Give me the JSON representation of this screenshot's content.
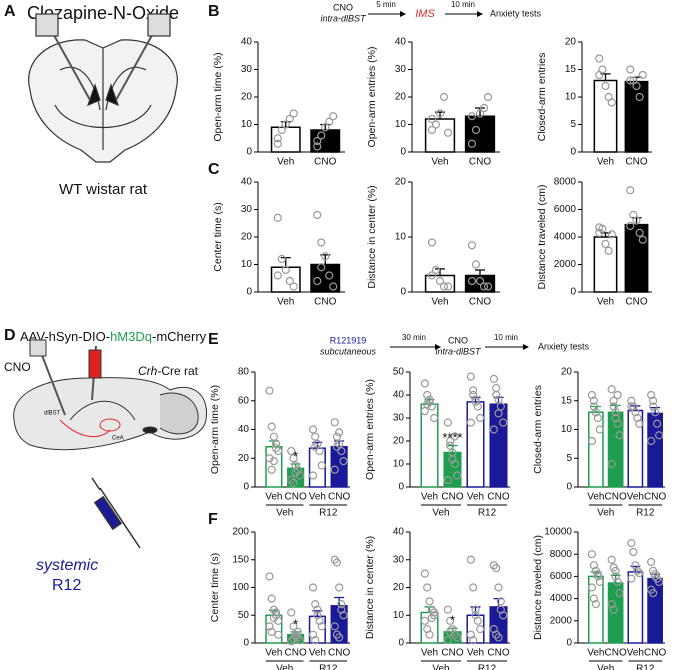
{
  "panels": [
    "A",
    "B",
    "C",
    "D",
    "E",
    "F"
  ],
  "diagram_a": {
    "title": "Clozapine-N-Oxide",
    "caption": "WT wistar rat"
  },
  "timeline_b": {
    "drug": "CNO",
    "site": "intra-dlBST",
    "delay1": "5 min",
    "stress": "IMS",
    "delay2": "10 min",
    "test": "Anxiety tests"
  },
  "diagram_d": {
    "virus_pre": "AAV-hSyn-DIO-",
    "virus_receptor": "hM3Dq",
    "virus_post": "-mCherry",
    "drug": "CNO",
    "strain_gene": "Crh",
    "strain_rest": "-Cre rat",
    "region1": "dlBST",
    "region2": "CeA",
    "route": "systemic",
    "antagonist": "R12"
  },
  "timeline_e": {
    "antagonist": "R121919",
    "route": "subcutaneous",
    "delay1": "30 min",
    "drug": "CNO",
    "site": "intra-dlBST",
    "delay2": "10 min",
    "test": "Anxiety tests"
  },
  "chart_data": [
    {
      "type": "bar",
      "ylabel": "Open-arm time (%)",
      "categories": [
        "Veh",
        "CNO"
      ],
      "values": [
        9,
        8
      ],
      "errors": [
        2,
        2
      ],
      "edges": [
        "#000000",
        "#000000"
      ],
      "fills": [
        "#ffffff",
        "#000000"
      ],
      "points": [
        [
          5,
          8,
          10,
          12,
          14,
          3
        ],
        [
          4,
          6,
          9,
          11,
          13,
          2
        ]
      ],
      "ylim": [
        0,
        40
      ],
      "yticks": [
        0,
        10,
        20,
        30,
        40
      ]
    },
    {
      "type": "bar",
      "ylabel": "Open-arm entries (%)",
      "categories": [
        "Veh",
        "CNO"
      ],
      "values": [
        12,
        13
      ],
      "errors": [
        2.5,
        3
      ],
      "edges": [
        "#000000",
        "#000000"
      ],
      "fills": [
        "#ffffff",
        "#000000"
      ],
      "points": [
        [
          8,
          10,
          14,
          20,
          7,
          12
        ],
        [
          3,
          8,
          14,
          16,
          20,
          13
        ]
      ],
      "ylim": [
        0,
        40
      ],
      "yticks": [
        0,
        10,
        20,
        30,
        40
      ]
    },
    {
      "type": "bar",
      "ylabel": "Closed-arm entries",
      "categories": [
        "Veh",
        "CNO"
      ],
      "values": [
        13,
        12.8
      ],
      "errors": [
        1.2,
        0.8
      ],
      "edges": [
        "#000000",
        "#000000"
      ],
      "fills": [
        "#ffffff",
        "#000000"
      ],
      "points": [
        [
          17,
          15,
          12,
          10,
          9,
          14
        ],
        [
          15,
          13,
          12,
          10,
          14,
          13
        ]
      ],
      "ylim": [
        0,
        20
      ],
      "yticks": [
        0,
        5,
        10,
        15,
        20
      ]
    },
    {
      "type": "bar",
      "ylabel": "Center time (s)",
      "categories": [
        "Veh",
        "CNO"
      ],
      "values": [
        9,
        10
      ],
      "errors": [
        3.5,
        3.5
      ],
      "edges": [
        "#000000",
        "#000000"
      ],
      "fills": [
        "#ffffff",
        "#000000"
      ],
      "points": [
        [
          27,
          12,
          8,
          4,
          2,
          6
        ],
        [
          28,
          18,
          13,
          6,
          2,
          4,
          9
        ]
      ],
      "ylim": [
        0,
        40
      ],
      "yticks": [
        0,
        10,
        20,
        30,
        40
      ]
    },
    {
      "type": "bar",
      "ylabel": "Distance in center (%)",
      "categories": [
        "Veh",
        "CNO"
      ],
      "values": [
        3,
        3
      ],
      "errors": [
        1.2,
        1
      ],
      "edges": [
        "#000000",
        "#000000"
      ],
      "fills": [
        "#ffffff",
        "#000000"
      ],
      "points": [
        [
          9,
          4,
          2,
          1,
          1,
          3
        ],
        [
          8.5,
          5,
          2,
          1,
          1,
          2
        ]
      ],
      "ylim": [
        0,
        20
      ],
      "yticks": [
        0,
        10,
        20
      ]
    },
    {
      "type": "bar",
      "ylabel": "Distance traveled (cm)",
      "categories": [
        "Veh",
        "CNO"
      ],
      "values": [
        4000,
        4900
      ],
      "errors": [
        300,
        500
      ],
      "edges": [
        "#000000",
        "#000000"
      ],
      "fills": [
        "#ffffff",
        "#000000"
      ],
      "points": [
        [
          4700,
          4600,
          3500,
          3000,
          4200,
          4300
        ],
        [
          7400,
          5600,
          5200,
          4300,
          3800,
          4800
        ]
      ],
      "ylim": [
        0,
        8000
      ],
      "yticks": [
        0,
        2000,
        4000,
        6000,
        8000
      ]
    },
    {
      "type": "bar",
      "ylabel": "Open-arm time (%)",
      "categories": [
        "Veh",
        "CNO",
        "Veh",
        "CNO"
      ],
      "groups": [
        "Veh",
        "R12"
      ],
      "values": [
        28,
        13,
        27,
        28
      ],
      "errors": [
        4,
        3,
        4,
        4
      ],
      "edges": [
        "#1e9e4f",
        "#1e9e4f",
        "#1a1a99",
        "#1a1a99"
      ],
      "fills": [
        "#ffffff",
        "#1e9e4f",
        "#ffffff",
        "#1a1a99"
      ],
      "significance": [
        null,
        "*",
        null,
        null
      ],
      "points": [
        [
          67,
          42,
          35,
          30,
          25,
          20,
          12,
          18,
          27
        ],
        [
          25,
          20,
          15,
          12,
          8,
          5,
          3,
          10
        ],
        [
          40,
          35,
          30,
          25,
          15,
          8,
          28
        ],
        [
          45,
          35,
          30,
          25,
          18,
          12,
          28,
          38
        ]
      ],
      "ylim": [
        0,
        80
      ],
      "yticks": [
        0,
        20,
        40,
        60,
        80
      ]
    },
    {
      "type": "bar",
      "ylabel": "Open-arm entries (%)",
      "categories": [
        "Veh",
        "CNO",
        "Veh",
        "CNO"
      ],
      "groups": [
        "Veh",
        "R12"
      ],
      "values": [
        36,
        15,
        37,
        36
      ],
      "errors": [
        2,
        3,
        2,
        3
      ],
      "edges": [
        "#1e9e4f",
        "#1e9e4f",
        "#1a1a99",
        "#1a1a99"
      ],
      "fills": [
        "#ffffff",
        "#1e9e4f",
        "#ffffff",
        "#1a1a99"
      ],
      "significance": [
        null,
        "****",
        null,
        null
      ],
      "points": [
        [
          45,
          40,
          37,
          35,
          30,
          33,
          36,
          38
        ],
        [
          28,
          20,
          15,
          10,
          5,
          3,
          18,
          12,
          22
        ],
        [
          48,
          42,
          38,
          35,
          30,
          28,
          40,
          37
        ],
        [
          47,
          43,
          38,
          35,
          28,
          25,
          40,
          32
        ]
      ],
      "ylim": [
        0,
        50
      ],
      "yticks": [
        0,
        10,
        20,
        30,
        40,
        50
      ]
    },
    {
      "type": "bar",
      "ylabel": "Closed-arm entries",
      "categories": [
        "Veh",
        "CNO",
        "Veh",
        "CNO"
      ],
      "groups": [
        "Veh",
        "R12"
      ],
      "values": [
        13,
        13,
        13.3,
        12.8
      ],
      "errors": [
        1,
        1.2,
        0.8,
        1
      ],
      "edges": [
        "#1e9e4f",
        "#1e9e4f",
        "#1a1a99",
        "#1a1a99"
      ],
      "fills": [
        "#ffffff",
        "#1e9e4f",
        "#ffffff",
        "#1a1a99"
      ],
      "points": [
        [
          16,
          14,
          13,
          12,
          10,
          8,
          15,
          13
        ],
        [
          17,
          15,
          13,
          11,
          9,
          4,
          14,
          12,
          16
        ],
        [
          15,
          14,
          13,
          12,
          11,
          14
        ],
        [
          16,
          14,
          13,
          11,
          9,
          8,
          15
        ]
      ],
      "ylim": [
        0,
        20
      ],
      "yticks": [
        0,
        5,
        10,
        15,
        20
      ]
    },
    {
      "type": "bar",
      "ylabel": "Center time (s)",
      "categories": [
        "Veh",
        "CNO",
        "Veh",
        "CNO"
      ],
      "groups": [
        "Veh",
        "R12"
      ],
      "values": [
        50,
        15,
        48,
        67
      ],
      "errors": [
        9,
        5,
        10,
        15
      ],
      "edges": [
        "#1e9e4f",
        "#1e9e4f",
        "#1a1a99",
        "#1a1a99"
      ],
      "fills": [
        "#ffffff",
        "#1e9e4f",
        "#ffffff",
        "#1a1a99"
      ],
      "significance": [
        null,
        "*",
        null,
        null
      ],
      "points": [
        [
          120,
          80,
          60,
          50,
          40,
          30,
          20,
          45,
          55,
          15
        ],
        [
          55,
          30,
          15,
          10,
          5,
          3,
          8,
          12,
          20
        ],
        [
          100,
          70,
          50,
          40,
          30,
          15,
          5,
          60
        ],
        [
          150,
          145,
          100,
          70,
          50,
          30,
          15,
          10,
          60
        ]
      ],
      "ylim": [
        0,
        200
      ],
      "yticks": [
        0,
        50,
        100,
        150,
        200
      ]
    },
    {
      "type": "bar",
      "ylabel": "Distance in center (%)",
      "categories": [
        "Veh",
        "CNO",
        "Veh",
        "CNO"
      ],
      "groups": [
        "Veh",
        "R12"
      ],
      "values": [
        11,
        4,
        10,
        13
      ],
      "errors": [
        2,
        1.3,
        3,
        3
      ],
      "edges": [
        "#1e9e4f",
        "#1e9e4f",
        "#1a1a99",
        "#1a1a99"
      ],
      "fills": [
        "#ffffff",
        "#1e9e4f",
        "#ffffff",
        "#1a1a99"
      ],
      "significance": [
        null,
        "*",
        null,
        null
      ],
      "points": [
        [
          25,
          20,
          15,
          12,
          10,
          8,
          5,
          3,
          9,
          11
        ],
        [
          12,
          8,
          5,
          3,
          2,
          1,
          4
        ],
        [
          30,
          20,
          12,
          8,
          5,
          3,
          1,
          10
        ],
        [
          28,
          27,
          20,
          15,
          10,
          5,
          3,
          2,
          12
        ]
      ],
      "ylim": [
        0,
        40
      ],
      "yticks": [
        0,
        10,
        20,
        30,
        40
      ]
    },
    {
      "type": "bar",
      "ylabel": "Distance traveled (cm)",
      "categories": [
        "Veh",
        "CNO",
        "Veh",
        "CNO"
      ],
      "groups": [
        "Veh",
        "R12"
      ],
      "values": [
        6000,
        5400,
        6400,
        5800
      ],
      "errors": [
        400,
        700,
        500,
        400
      ],
      "edges": [
        "#1e9e4f",
        "#1e9e4f",
        "#1a1a99",
        "#1a1a99"
      ],
      "fills": [
        "#ffffff",
        "#1e9e4f",
        "#ffffff",
        "#1a1a99"
      ],
      "points": [
        [
          8000,
          7000,
          6500,
          6000,
          5500,
          5000,
          4000,
          3500,
          6200
        ],
        [
          7500,
          6800,
          6000,
          5500,
          4500,
          3500,
          3000,
          6500
        ],
        [
          9000,
          8200,
          7000,
          6500,
          6300,
          5800
        ],
        [
          7300,
          6500,
          6000,
          5800,
          5500,
          4800,
          4500,
          6200
        ]
      ],
      "ylim": [
        0,
        10000
      ],
      "yticks": [
        0,
        2000,
        4000,
        6000,
        8000,
        10000
      ]
    }
  ]
}
